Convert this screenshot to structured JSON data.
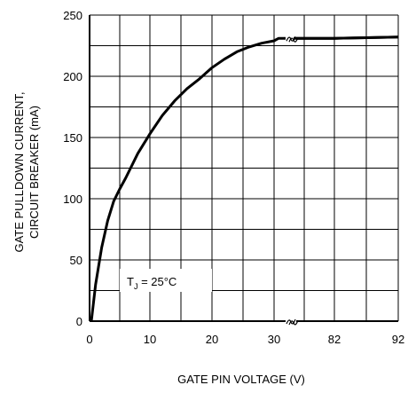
{
  "chart_data": {
    "type": "line",
    "xlabel": "GATE PIN VOLTAGE (V)",
    "ylabel_line1": "GATE PULLDOWN CURRENT,",
    "ylabel_line2": "CIRCUIT BREAKER (mA)",
    "annotation": {
      "prefix": "T",
      "sub": "J",
      "suffix": " = 25°C"
    },
    "x_ticks": [
      "0",
      "10",
      "20",
      "30",
      "82",
      "92"
    ],
    "y_ticks": [
      "0",
      "50",
      "100",
      "150",
      "200",
      "250"
    ],
    "ylim": [
      0,
      250
    ],
    "x_axis_break": "between 30 and 82 V",
    "grid": true,
    "series": [
      {
        "x": [
          0.3,
          1,
          2,
          3,
          4,
          5,
          6,
          8,
          10,
          12,
          14,
          16,
          18,
          20,
          22,
          24,
          26,
          28,
          30,
          32,
          34,
          82,
          87,
          92
        ],
        "values": [
          0,
          30,
          60,
          82,
          98,
          108,
          117,
          137,
          153,
          168,
          180,
          190,
          198,
          207,
          214,
          220,
          224,
          227,
          229,
          230,
          231,
          231,
          231.5,
          232
        ]
      }
    ]
  }
}
